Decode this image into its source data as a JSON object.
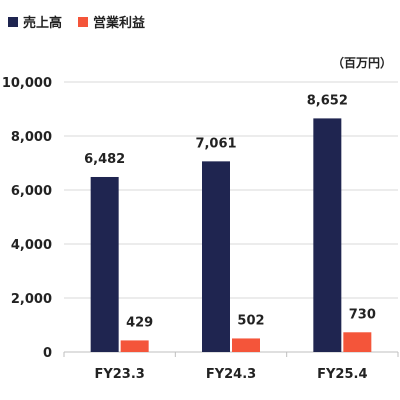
{
  "chart_data": {
    "type": "bar",
    "unit_label": "（百万円）",
    "categories": [
      "FY23.3",
      "FY24.3",
      "FY25.4"
    ],
    "series": [
      {
        "name": "売上高",
        "values": [
          6482,
          7061,
          8652
        ],
        "labels": [
          "6,482",
          "7,061",
          "8,652"
        ],
        "color": "#1f2550"
      },
      {
        "name": "営業利益",
        "values": [
          429,
          502,
          730
        ],
        "labels": [
          "429",
          "502",
          "730"
        ],
        "color": "#f4553a"
      }
    ],
    "ylim": [
      0,
      10000
    ],
    "yticks": [
      0,
      2000,
      4000,
      6000,
      8000,
      10000
    ],
    "ytick_labels": [
      "0",
      "2,000",
      "4,000",
      "6,000",
      "8,000",
      "10,000"
    ],
    "grid": true,
    "legend": "top-left"
  }
}
